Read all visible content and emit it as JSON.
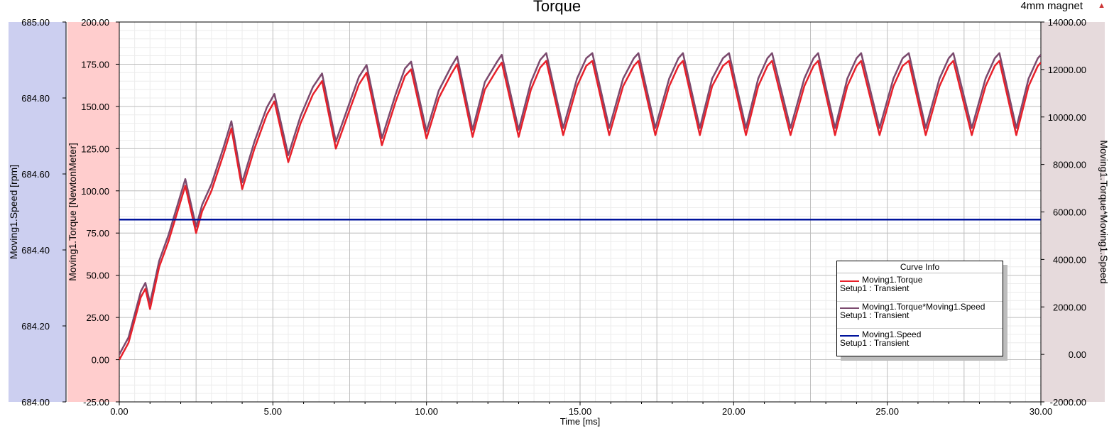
{
  "title": "Torque",
  "tag": {
    "label": "4mm magnet",
    "icon": "warning-triangle-icon"
  },
  "colors": {
    "speed_axis_band": "#cccff0",
    "torque_axis_band": "#ffcdcd",
    "power_axis_band": "#e6dadc"
  },
  "chart_data": {
    "type": "line",
    "title": "Torque",
    "xlabel": "Time [ms]",
    "xlim": [
      0,
      30
    ],
    "xticks": [
      "0.00",
      "5.00",
      "10.00",
      "15.00",
      "20.00",
      "25.00",
      "30.00"
    ],
    "grid": true,
    "axes": {
      "speed": {
        "label": "Moving1.Speed [rpm]",
        "side": "left-outer",
        "lim": [
          684.0,
          685.0
        ],
        "ticks": [
          "684.00",
          "684.20",
          "684.40",
          "684.60",
          "684.80",
          "685.00"
        ]
      },
      "torque": {
        "label": "Moving1.Torque [NewtonMeter]",
        "side": "left-inner",
        "lim": [
          -25,
          200
        ],
        "ticks": [
          "-25.00",
          "0.00",
          "25.00",
          "50.00",
          "75.00",
          "100.00",
          "125.00",
          "150.00",
          "175.00",
          "200.00"
        ]
      },
      "power": {
        "label": "Moving1.Torque*Moving1.Speed",
        "side": "right",
        "lim": [
          -2000,
          14000
        ],
        "ticks": [
          "-2000.00",
          "0.00",
          "2000.00",
          "4000.00",
          "6000.00",
          "8000.00",
          "10000.00",
          "12000.00",
          "14000.00"
        ]
      }
    },
    "torque_profile": {
      "x": [
        0,
        0.3,
        0.7,
        0.85,
        1.0,
        1.3,
        1.6,
        1.9,
        2.15,
        2.5,
        2.7,
        3.0,
        3.4,
        3.65,
        4.0,
        4.4,
        4.8,
        5.05,
        5.5,
        5.9,
        6.3,
        6.6,
        7.05,
        7.5,
        7.8,
        8.05,
        8.55,
        9.0,
        9.3,
        9.5,
        10.0,
        10.4,
        10.8,
        11.0,
        11.5,
        11.9,
        12.3,
        12.45,
        13.0,
        13.4,
        13.7,
        13.9,
        14.45,
        14.9,
        15.2,
        15.4,
        15.95,
        16.4,
        16.75,
        16.9,
        17.45,
        17.9,
        18.2,
        18.35,
        18.9,
        19.3,
        19.65,
        19.85,
        20.4,
        20.8,
        21.1,
        21.25,
        21.85,
        22.3,
        22.6,
        22.75,
        23.3,
        23.7,
        24.0,
        24.15,
        24.75,
        25.2,
        25.5,
        25.7,
        26.25,
        26.7,
        27.0,
        27.15,
        27.75,
        28.2,
        28.5,
        28.65,
        29.2,
        29.6,
        29.9,
        30.0
      ],
      "y": [
        0,
        10,
        37,
        42,
        30,
        55,
        70,
        88,
        103,
        75,
        88,
        100,
        122,
        137,
        101,
        125,
        145,
        153,
        117,
        140,
        157,
        165,
        125,
        148,
        163,
        170,
        127,
        153,
        168,
        172,
        131,
        155,
        169,
        175,
        132,
        160,
        172,
        176,
        132,
        160,
        173,
        177,
        133,
        162,
        174,
        177,
        133,
        162,
        174,
        177,
        133,
        162,
        174,
        177,
        133,
        162,
        174,
        177,
        133,
        162,
        174,
        177,
        133,
        162,
        174,
        177,
        133,
        162,
        174,
        177,
        133,
        162,
        174,
        177,
        133,
        162,
        174,
        177,
        133,
        162,
        174,
        177,
        133,
        162,
        174,
        176
      ]
    },
    "series": [
      {
        "name": "Moving1.Torque",
        "setup": "Setup1 : Transient",
        "axis": "torque",
        "color": "#e8202a",
        "source": "torque_profile"
      },
      {
        "name": "Moving1.Torque*Moving1.Speed",
        "setup": "Setup1 : Transient",
        "axis": "power",
        "color": "#7b4a6e",
        "source": "torque_profile",
        "factor": 71.7
      },
      {
        "name": "Moving1.Speed",
        "setup": "Setup1 : Transient",
        "axis": "speed",
        "color": "#00139c",
        "x": [
          0,
          30
        ],
        "y": [
          684.48,
          684.48
        ]
      }
    ],
    "legend": {
      "title": "Curve Info",
      "placement": "lower-right"
    }
  }
}
